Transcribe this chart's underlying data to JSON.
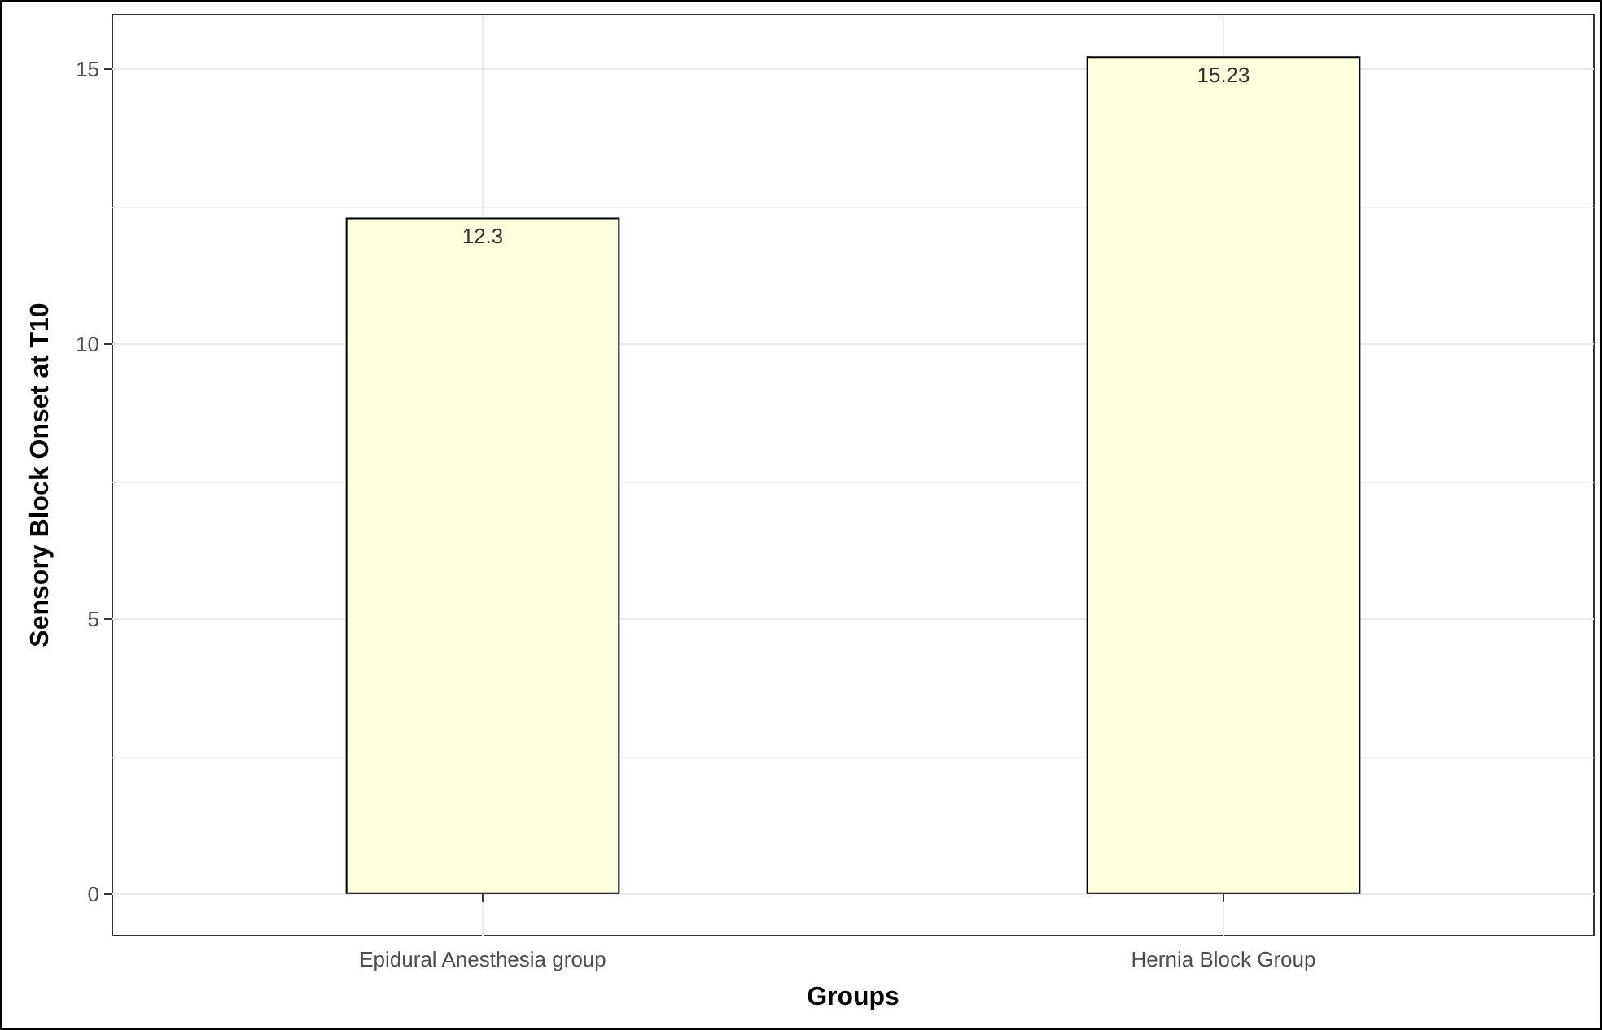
{
  "chart_data": {
    "type": "bar",
    "xlabel": "Groups",
    "ylabel": "Sensory Block Onset at T10",
    "categories": [
      "Epidural Anesthesia group",
      "Hernia Block Group"
    ],
    "values": [
      12.3,
      15.23
    ],
    "color": "#ffffe0",
    "ylim": [
      -0.76,
      15.99
    ],
    "yticks": [
      0,
      5,
      10,
      15
    ],
    "grid": true,
    "data_labels": true
  }
}
